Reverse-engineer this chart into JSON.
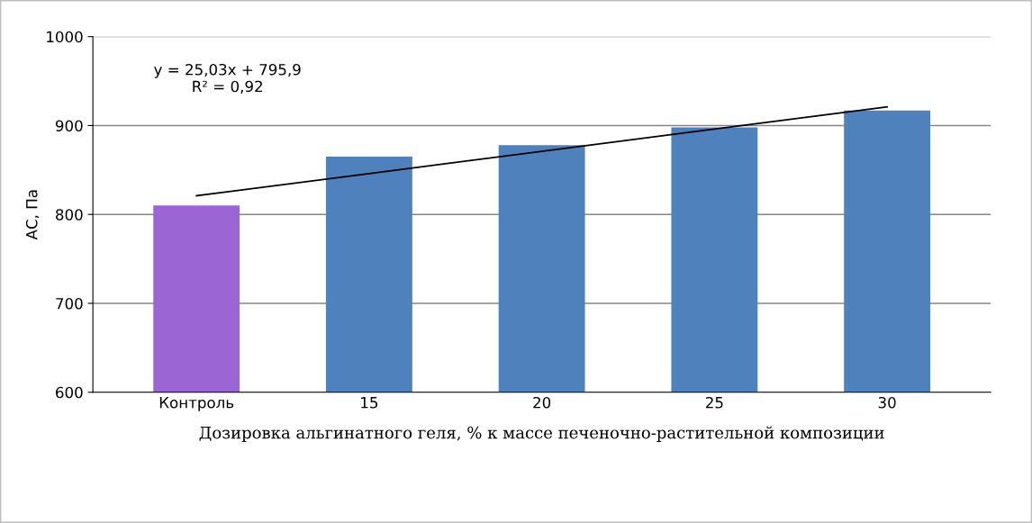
{
  "chart_data": {
    "type": "bar",
    "xlabel": "Дозировка альгинатного геля, % к массе печеночно-растительной композиции",
    "ylabel": "АС, Па",
    "categories": [
      "Контроль",
      "15",
      "20",
      "25",
      "30"
    ],
    "series": [
      {
        "colors": [
          "#9b66d4",
          "#4f81bd",
          "#4f81bd",
          "#4f81bd",
          "#4f81bd"
        ],
        "values": [
          810,
          865,
          878,
          898,
          917
        ]
      },
      {
        "type": "line",
        "color": "#000000",
        "values": [
          821,
          846,
          871,
          896,
          921
        ]
      }
    ],
    "annotations": [
      "y = 25,03x + 795,9\nR² = 0,92"
    ],
    "ylim": [
      600,
      1000
    ],
    "yticks": [
      600,
      700,
      800,
      900,
      1000
    ],
    "grid": "y",
    "legend": false
  }
}
